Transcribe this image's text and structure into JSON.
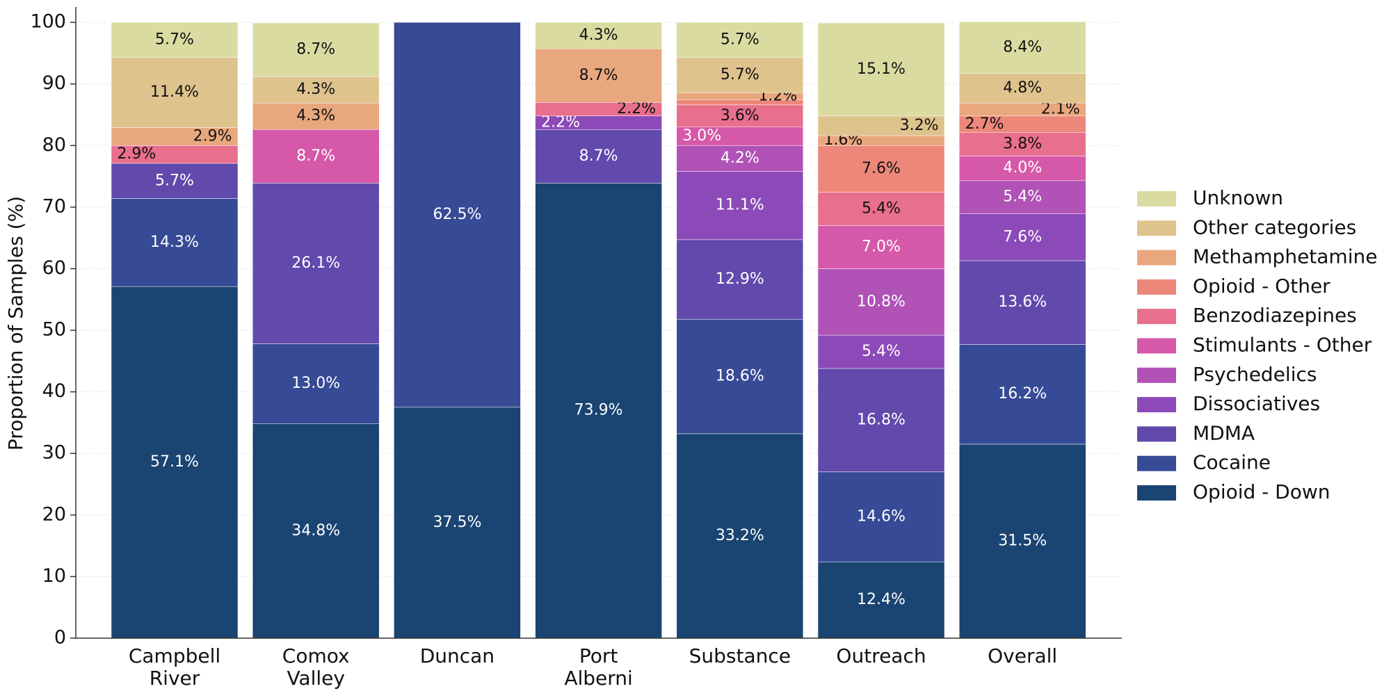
{
  "chart_data": {
    "type": "stacked_bar",
    "y_label": "Proportion of Samples (%)",
    "categories": [
      "Campbell\nRiver",
      "Comox\nValley",
      "Duncan",
      "Port\nAlberni",
      "Substance",
      "Outreach",
      "Overall"
    ],
    "ylim": [
      0,
      102.5
    ],
    "yticks": [
      0,
      10,
      20,
      30,
      40,
      50,
      60,
      70,
      80,
      90,
      100
    ],
    "grid": true,
    "legend": "right",
    "series": [
      {
        "name": "Opioid - Down",
        "color": "#1a4472",
        "label_color": "#ffffff",
        "values": [
          57.1,
          34.8,
          37.5,
          73.9,
          33.2,
          12.4,
          31.5
        ],
        "value_labels": [
          "57.1%",
          "34.8%",
          "37.5%",
          "73.9%",
          "33.2%",
          "12.4%",
          "31.5%"
        ]
      },
      {
        "name": "Cocaine",
        "color": "#374a96",
        "label_color": "#ffffff",
        "values": [
          14.3,
          13.0,
          62.5,
          0,
          18.6,
          14.6,
          16.2
        ],
        "value_labels": [
          "14.3%",
          "13.0%",
          "62.5%",
          null,
          "18.6%",
          "14.6%",
          "16.2%"
        ]
      },
      {
        "name": "MDMA",
        "color": "#6249ac",
        "label_color": "#ffffff",
        "values": [
          5.7,
          26.1,
          0,
          8.7,
          12.9,
          16.8,
          13.6
        ],
        "value_labels": [
          "5.7%",
          "26.1%",
          null,
          "8.7%",
          "12.9%",
          "16.8%",
          "13.6%"
        ]
      },
      {
        "name": "Dissociatives",
        "color": "#8b4ab8",
        "label_color": "#ffffff",
        "values": [
          0,
          0,
          0,
          2.2,
          11.1,
          5.4,
          7.6
        ],
        "value_labels": [
          null,
          null,
          null,
          "2.2%",
          "11.1%",
          "5.4%",
          "7.6%"
        ]
      },
      {
        "name": "Psychedelics",
        "color": "#b052b6",
        "label_color": "#ffffff",
        "values": [
          0,
          0,
          0,
          0,
          4.2,
          10.8,
          5.4
        ],
        "value_labels": [
          null,
          null,
          null,
          null,
          "4.2%",
          "10.8%",
          "5.4%"
        ]
      },
      {
        "name": "Stimulants - Other",
        "color": "#d658a8",
        "label_color": "#ffffff",
        "values": [
          0,
          8.7,
          0,
          0,
          3.0,
          7.0,
          4.0
        ],
        "value_labels": [
          null,
          "8.7%",
          null,
          null,
          "3.0%",
          "7.0%",
          "4.0%"
        ]
      },
      {
        "name": "Benzodiazepines",
        "color": "#e86f8d",
        "label_color": "#111111",
        "values": [
          2.9,
          0,
          0,
          2.2,
          3.6,
          5.4,
          3.8
        ],
        "value_labels": [
          "2.9%",
          null,
          null,
          "2.2%",
          "3.6%",
          "5.4%",
          "3.8%"
        ]
      },
      {
        "name": "Opioid - Other",
        "color": "#ec877a",
        "label_color": "#111111",
        "values": [
          0,
          0,
          0,
          0,
          0.8,
          7.6,
          2.7
        ],
        "value_labels": [
          null,
          null,
          null,
          null,
          null,
          "7.6%",
          "2.7%"
        ]
      },
      {
        "name": "Methamphetamine",
        "color": "#e9a77e",
        "label_color": "#111111",
        "values": [
          2.9,
          4.3,
          0,
          8.7,
          1.2,
          1.6,
          2.1
        ],
        "value_labels": [
          "2.9%",
          "4.3%",
          null,
          "8.7%",
          "1.2%",
          "1.6%",
          "2.1%"
        ]
      },
      {
        "name": "Other categories",
        "color": "#dfc38d",
        "label_color": "#111111",
        "values": [
          11.4,
          4.3,
          0,
          0,
          5.7,
          3.2,
          4.8
        ],
        "value_labels": [
          "11.4%",
          "4.3%",
          null,
          null,
          "5.7%",
          "3.2%",
          "4.8%"
        ]
      },
      {
        "name": "Unknown",
        "color": "#dadba1",
        "label_color": "#111111",
        "values": [
          5.7,
          8.7,
          0,
          4.3,
          5.7,
          15.1,
          8.4
        ],
        "value_labels": [
          "5.7%",
          "8.7%",
          null,
          "4.3%",
          "5.7%",
          "15.1%",
          "8.4%"
        ]
      }
    ]
  }
}
